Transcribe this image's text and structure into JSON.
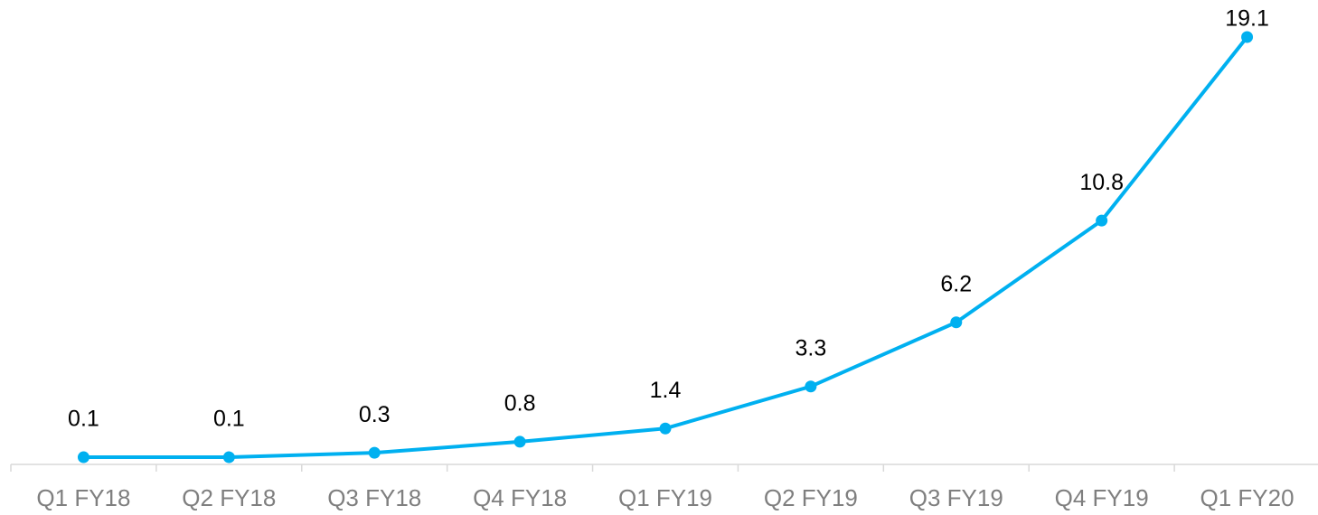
{
  "chart_data": {
    "type": "line",
    "categories": [
      "Q1 FY18",
      "Q2 FY18",
      "Q3 FY18",
      "Q4 FY18",
      "Q1 FY19",
      "Q2 FY19",
      "Q3 FY19",
      "Q4 FY19",
      "Q1 FY20"
    ],
    "values": [
      0.1,
      0.1,
      0.3,
      0.8,
      1.4,
      3.3,
      6.2,
      10.8,
      19.1
    ],
    "color": "#00b0f0"
  }
}
